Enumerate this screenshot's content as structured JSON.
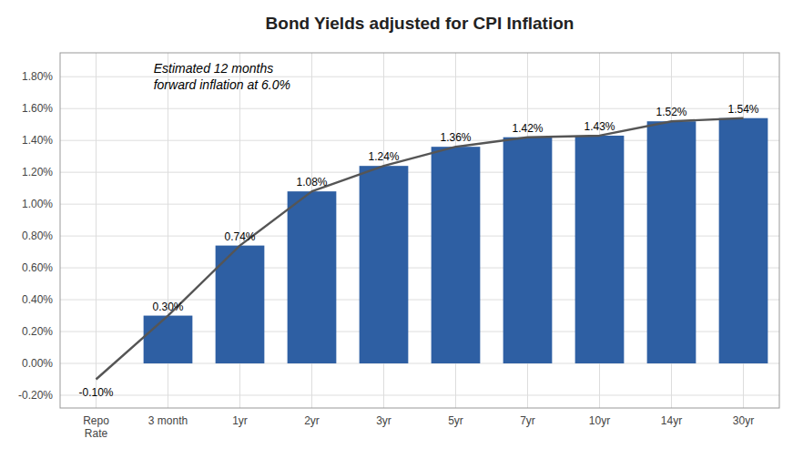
{
  "chart_data": {
    "type": "bar",
    "title": "Bond Yields adjusted for CPI Inflation",
    "annotation": "Estimated 12 months\nforward inflation at 6.0%",
    "categories": [
      "Repo\nRate",
      "3 month",
      "1yr",
      "2yr",
      "3yr",
      "5yr",
      "7yr",
      "10yr",
      "14yr",
      "30yr"
    ],
    "series": [
      {
        "type": "bar",
        "color": "#2E5FA3",
        "values": [
          null,
          0.3,
          0.74,
          1.08,
          1.24,
          1.36,
          1.42,
          1.43,
          1.52,
          1.54
        ],
        "value_labels": [
          null,
          "0.30%",
          "0.74%",
          "1.08%",
          "1.24%",
          "1.36%",
          "1.42%",
          "1.43%",
          "1.52%",
          "1.54%"
        ]
      },
      {
        "type": "line",
        "color": "#555555",
        "values": [
          -0.1,
          0.3,
          0.74,
          1.08,
          1.24,
          1.36,
          1.42,
          1.43,
          1.52,
          1.54
        ],
        "value_labels": [
          "-0.10%",
          null,
          null,
          null,
          null,
          null,
          null,
          null,
          null,
          null
        ]
      }
    ],
    "ylim": [
      -0.28,
      1.95
    ],
    "yticks": [
      {
        "value": -0.2,
        "label": "-0.20%"
      },
      {
        "value": 0.0,
        "label": "0.00%"
      },
      {
        "value": 0.2,
        "label": "0.20%"
      },
      {
        "value": 0.4,
        "label": "0.40%"
      },
      {
        "value": 0.6,
        "label": "0.60%"
      },
      {
        "value": 0.8,
        "label": "0.80%"
      },
      {
        "value": 1.0,
        "label": "1.00%"
      },
      {
        "value": 1.2,
        "label": "1.20%"
      },
      {
        "value": 1.4,
        "label": "1.40%"
      },
      {
        "value": 1.6,
        "label": "1.60%"
      },
      {
        "value": 1.8,
        "label": "1.80%"
      }
    ],
    "grid": true,
    "data_labels": true
  }
}
